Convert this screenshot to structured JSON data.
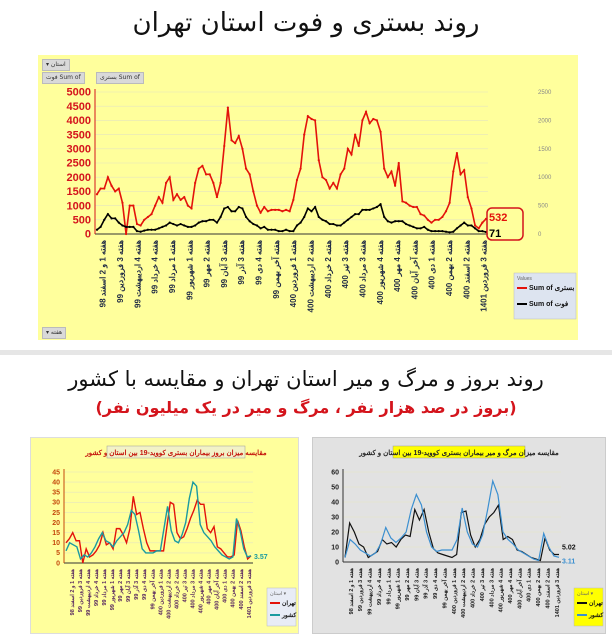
{
  "title": "روند بستری و فوت استان تهران",
  "subtitle": "روند بروز و مرگ و میر استان تهران و مقایسه با کشور",
  "subtitle_note": "(بروز در صد هزار نفر ، مرگ و میر در یک میلیون نفر)",
  "pivot": {
    "filter": "استان ▾",
    "field1": "Sum of فوت",
    "field2": "Sum of بستری",
    "axis": "هفته ▾"
  },
  "week_labels": [
    "هفته 1 و 2 اسفند 98",
    "هفته 3 فروردین 99",
    "هفته 4 اردیبهشت 99",
    "هفته 4 خرداد 99",
    "هفته 1 مرداد 99",
    "هفته 1 شهریور 99",
    "هفته 2 مهر 99",
    "هفته 3 آبان 99",
    "هفته 3 آذر 99",
    "هفته 4 دی 99",
    "هفته آخر بهمن 99",
    "هفته 1 فروردین 400",
    "هفته 2 اردیبهشت 400",
    "هفته 2 خرداد 400",
    "هفته 3 تیر 400",
    "هفته 3 مرداد 400",
    "هفته 4 شهریور 400",
    "هفته 4 مهر 400",
    "هفته آخر آبان 400",
    "هفته 1 دی 400",
    "هفته 2 بهمن 400",
    "هفته 2 اسفند 400",
    "هفته 3 فروردین 1401"
  ],
  "chart_data": [
    {
      "type": "line",
      "title": "روند بستری و فوت استان تهران",
      "ylim": [
        0,
        5000
      ],
      "yticks": [
        0,
        500,
        1000,
        1500,
        2000,
        2500,
        3000,
        3500,
        4000,
        4500,
        5000
      ],
      "y2ticks": [
        0,
        500,
        1000,
        1500,
        2000,
        2500
      ],
      "legend_title": "Values",
      "legend": "right",
      "series": [
        {
          "name": "Sum of بستری",
          "color": "#e3120b",
          "end_label": "532",
          "values": [
            1400,
            1600,
            1600,
            2000,
            1700,
            1500,
            1600,
            1100,
            0,
            1000,
            1000,
            350,
            300,
            500,
            600,
            700,
            1000,
            1300,
            1100,
            1800,
            2000,
            1200,
            1400,
            1200,
            1300,
            1000,
            900,
            1800,
            2300,
            2400,
            2100,
            2100,
            1800,
            1300,
            1800,
            3100,
            4450,
            3300,
            3200,
            3450,
            3000,
            2300,
            2100,
            1500,
            1000,
            750,
            950,
            800,
            850,
            850,
            850,
            800,
            850,
            800,
            1200,
            1900,
            2300,
            3500,
            4150,
            4050,
            4000,
            2600,
            2000,
            1900,
            1600,
            1800,
            1600,
            2100,
            2300,
            3000,
            2800,
            3500,
            3100,
            4000,
            4300,
            3900,
            4050,
            4000,
            3600,
            2300,
            2000,
            2200,
            1700,
            2500,
            1150,
            1100,
            1000,
            950,
            950,
            700,
            650,
            500,
            400,
            500,
            500,
            600,
            800,
            1100,
            2200,
            2850,
            2100,
            2250,
            1300,
            900,
            300,
            200,
            400,
            532
          ]
        },
        {
          "name": "Sum of فوت",
          "color": "#000000",
          "end_label": "71",
          "values": [
            150,
            250,
            500,
            700,
            550,
            550,
            400,
            300,
            250,
            250,
            250,
            100,
            80,
            120,
            150,
            150,
            150,
            200,
            250,
            300,
            400,
            350,
            300,
            350,
            300,
            250,
            250,
            300,
            400,
            450,
            450,
            500,
            500,
            400,
            600,
            900,
            950,
            800,
            800,
            950,
            900,
            600,
            450,
            350,
            300,
            200,
            250,
            150,
            150,
            150,
            100,
            100,
            150,
            100,
            100,
            300,
            400,
            600,
            900,
            800,
            950,
            600,
            500,
            450,
            350,
            350,
            300,
            300,
            400,
            500,
            600,
            700,
            700,
            850,
            850,
            850,
            900,
            950,
            1050,
            600,
            450,
            400,
            450,
            450,
            450,
            350,
            300,
            250,
            200,
            200,
            250,
            150,
            100,
            100,
            100,
            100,
            80,
            60,
            80,
            200,
            300,
            400,
            300,
            300,
            200,
            100,
            100,
            71
          ]
        }
      ]
    },
    {
      "type": "line",
      "title": "مقایسه میزان بروز بیماران بستری کووید-19 بین استان و کشور",
      "ylim": [
        0,
        45
      ],
      "yticks": [
        0,
        5,
        10,
        15,
        20,
        25,
        30,
        35,
        40,
        45
      ],
      "legend_title": "استان ▾",
      "series": [
        {
          "name": "تهران",
          "color": "#e3120b",
          "end_label": "",
          "values": [
            10,
            12,
            15,
            11,
            11,
            0,
            7,
            3,
            4,
            6,
            9,
            15,
            9,
            10,
            7,
            17,
            17,
            14,
            10,
            17,
            33,
            24,
            25,
            17,
            10,
            6,
            6,
            6,
            6,
            6,
            18,
            30,
            29,
            15,
            12,
            13,
            17,
            22,
            26,
            31,
            29,
            29,
            17,
            15,
            18,
            8,
            7,
            5,
            3,
            3,
            4,
            21,
            16,
            8,
            2,
            3.57
          ]
        },
        {
          "name": "کل کشور",
          "color": "#1a9aa0",
          "end_label": "3.57",
          "values": [
            6,
            10,
            9,
            8,
            2,
            4,
            3,
            5,
            8,
            12,
            15,
            11,
            10,
            8,
            11,
            13,
            15,
            19,
            26,
            24,
            16,
            7,
            5,
            5,
            5,
            6,
            6,
            17,
            28,
            16,
            11,
            10,
            14,
            20,
            32,
            40,
            38,
            19,
            15,
            13,
            11,
            8,
            6,
            4,
            3,
            2,
            3,
            22,
            16,
            7,
            3,
            3.57
          ]
        }
      ]
    },
    {
      "type": "line",
      "title": "مقایسه میزان مرگ و میر بیماران بستری کووید-19 بین استان و کشور",
      "ylim": [
        0,
        60
      ],
      "yticks": [
        0,
        10,
        20,
        30,
        40,
        50,
        60
      ],
      "legend_title": "استان ▾",
      "series": [
        {
          "name": "تهران",
          "color": "#111111",
          "end_label": "5.02",
          "values": [
            3,
            26,
            20,
            12,
            10,
            3,
            5,
            7,
            15,
            12,
            13,
            10,
            15,
            18,
            17,
            35,
            28,
            35,
            20,
            9,
            6,
            5,
            4,
            3,
            5,
            33,
            34,
            18,
            10,
            15,
            25,
            30,
            33,
            38,
            15,
            17,
            15,
            8,
            7,
            5,
            3,
            2,
            1,
            16,
            8,
            5,
            5.02
          ]
        },
        {
          "name": "کل کشور",
          "color": "#3b8fd0",
          "end_label": "3.11",
          "values": [
            3,
            15,
            12,
            8,
            6,
            4,
            6,
            12,
            23,
            16,
            13,
            16,
            20,
            35,
            45,
            38,
            20,
            10,
            7,
            8,
            8,
            8,
            15,
            36,
            20,
            12,
            10,
            18,
            35,
            54,
            45,
            20,
            15,
            12,
            8,
            6,
            4,
            2,
            1,
            19,
            10,
            4,
            3.11
          ]
        }
      ]
    }
  ]
}
